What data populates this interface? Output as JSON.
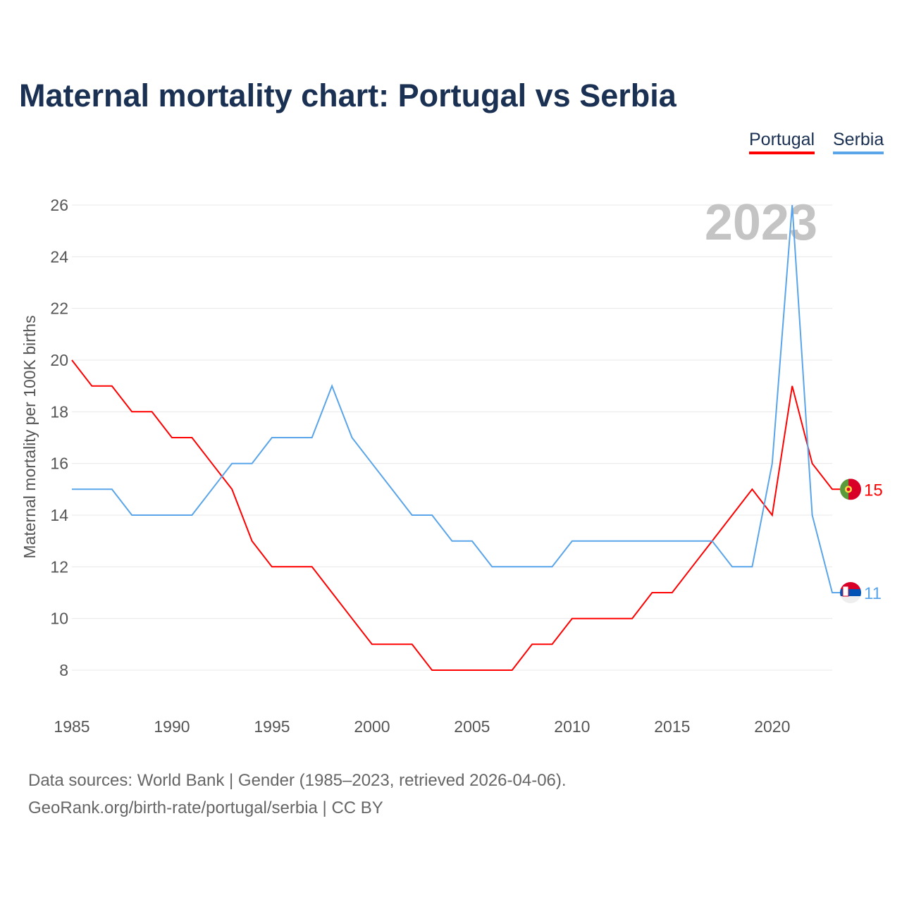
{
  "title": "Maternal mortality chart: Portugal vs Serbia",
  "footer": {
    "line1": "Data sources: World Bank | Gender (1985–2023, retrieved 2026-04-06).",
    "line2": "GeoRank.org/birth-rate/portugal/serbia | CC BY"
  },
  "chart_data": {
    "type": "line",
    "title": "Maternal mortality chart: Portugal vs Serbia",
    "ylabel": "Maternal mortality per 100K births",
    "xlabel": "",
    "year_label": "2023",
    "xlim": [
      1985,
      2023
    ],
    "ylim": [
      7,
      26.5
    ],
    "xticks": [
      1985,
      1990,
      1995,
      2000,
      2005,
      2010,
      2015,
      2020
    ],
    "yticks": [
      8,
      10,
      12,
      14,
      16,
      18,
      20,
      22,
      24,
      26
    ],
    "grid": true,
    "legend_position": "top-right",
    "x": [
      1985,
      1986,
      1987,
      1988,
      1989,
      1990,
      1991,
      1992,
      1993,
      1994,
      1995,
      1996,
      1997,
      1998,
      1999,
      2000,
      2001,
      2002,
      2003,
      2004,
      2005,
      2006,
      2007,
      2008,
      2009,
      2010,
      2011,
      2012,
      2013,
      2014,
      2015,
      2016,
      2017,
      2018,
      2019,
      2020,
      2021,
      2022,
      2023
    ],
    "series": [
      {
        "name": "Portugal",
        "color": "#ff0000",
        "end_label": "15",
        "values": [
          20,
          19,
          19,
          18,
          18,
          17,
          17,
          16,
          15,
          13,
          12,
          12,
          12,
          11,
          10,
          9,
          9,
          9,
          8,
          8,
          8,
          8,
          8,
          9,
          9,
          10,
          10,
          10,
          10,
          11,
          11,
          12,
          13,
          14,
          15,
          14,
          19,
          16,
          15
        ]
      },
      {
        "name": "Serbia",
        "color": "#5aa5ea",
        "end_label": "11",
        "values": [
          15,
          15,
          15,
          14,
          14,
          14,
          14,
          15,
          16,
          16,
          17,
          17,
          17,
          19,
          17,
          16,
          15,
          14,
          14,
          13,
          13,
          12,
          12,
          12,
          12,
          13,
          13,
          13,
          13,
          13,
          13,
          13,
          13,
          12,
          12,
          16,
          26,
          14,
          11
        ]
      }
    ]
  }
}
